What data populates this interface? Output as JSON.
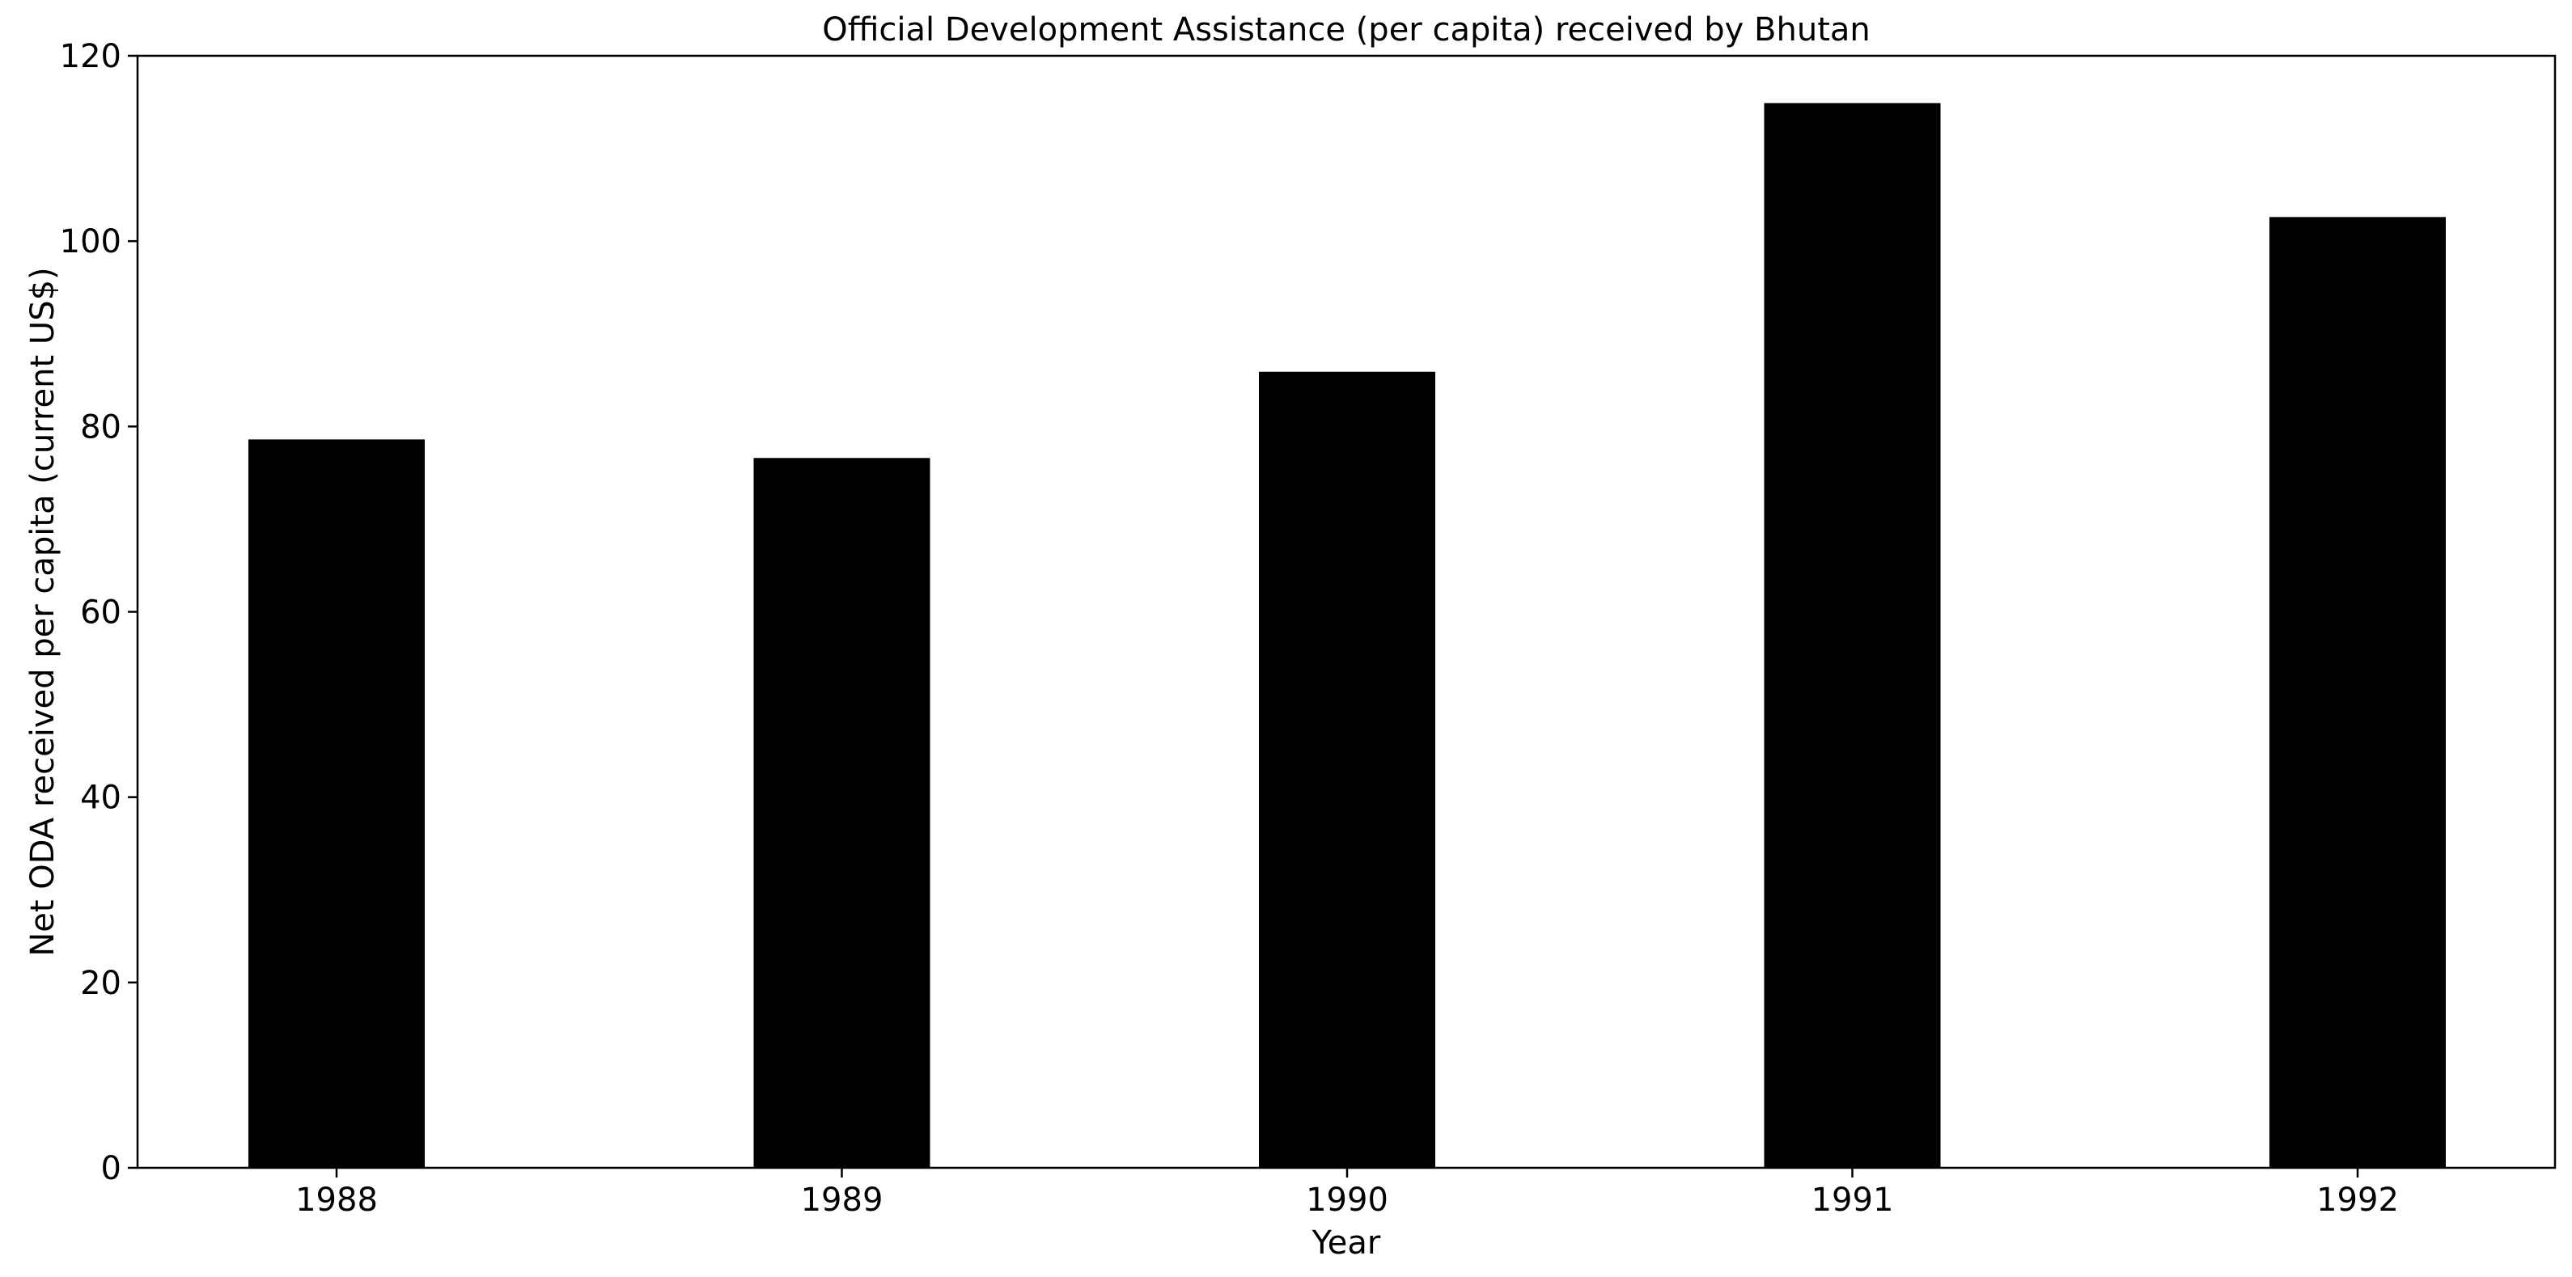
{
  "chart_data": {
    "type": "bar",
    "title": "Official Development Assistance (per capita) received by Bhutan",
    "xlabel": "Year",
    "ylabel": "Net ODA received per capita (current US$)",
    "categories": [
      "1988",
      "1989",
      "1990",
      "1991",
      "1992"
    ],
    "values": [
      78.6,
      76.6,
      85.9,
      114.9,
      102.6
    ],
    "ylim": [
      0,
      120
    ],
    "yticks": [
      "0",
      "20",
      "40",
      "60",
      "80",
      "100",
      "120"
    ],
    "bar_color": "#000000",
    "grid": false,
    "legend": "none"
  }
}
